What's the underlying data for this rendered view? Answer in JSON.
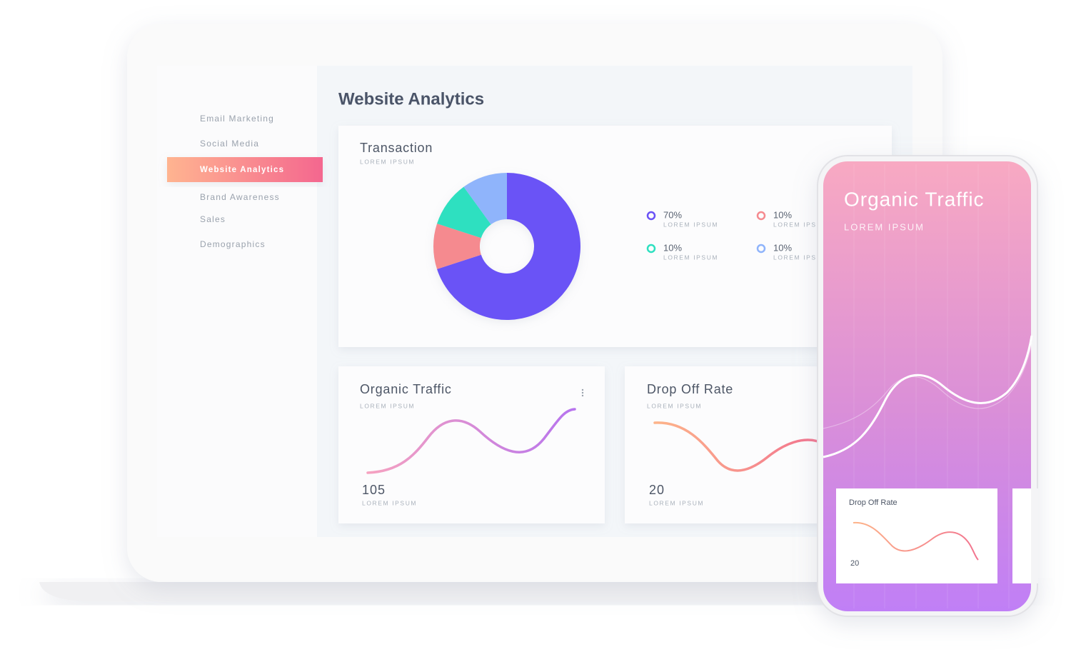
{
  "sidebar": {
    "items": [
      "Email Marketing",
      "Social Media",
      "Website Analytics",
      "Brand Awareness",
      "Sales",
      "Demographics"
    ],
    "active": 2
  },
  "main": {
    "title": "Website Analytics"
  },
  "transaction": {
    "title": "Transaction",
    "subtitle": "LOREM IPSUM",
    "segments": [
      {
        "value": 70,
        "label": "70%",
        "caption": "LOREM IPSUM",
        "color": "#6a52f6"
      },
      {
        "value": 10,
        "label": "10%",
        "caption": "LOREM IPSUM",
        "color": "#f58a8f"
      },
      {
        "value": 10,
        "label": "10%",
        "caption": "LOREM IPSUM",
        "color": "#2ee0c0"
      },
      {
        "value": 10,
        "label": "10%",
        "caption": "LOREM IPSUM",
        "color": "#8fb4fb"
      }
    ]
  },
  "cards": [
    {
      "title": "Organic Traffic",
      "subtitle": "LOREM IPSUM",
      "value": 105,
      "caption": "LOREM IPSUM"
    },
    {
      "title": "Drop Off Rate",
      "subtitle": "LOREM IPSUM",
      "value": 20,
      "caption": "LOREM IPSUM"
    }
  ],
  "phone": {
    "title": "Organic Traffic",
    "subtitle": "LOREM IPSUM",
    "card": {
      "title": "Drop Off Rate",
      "value": 20
    }
  }
}
